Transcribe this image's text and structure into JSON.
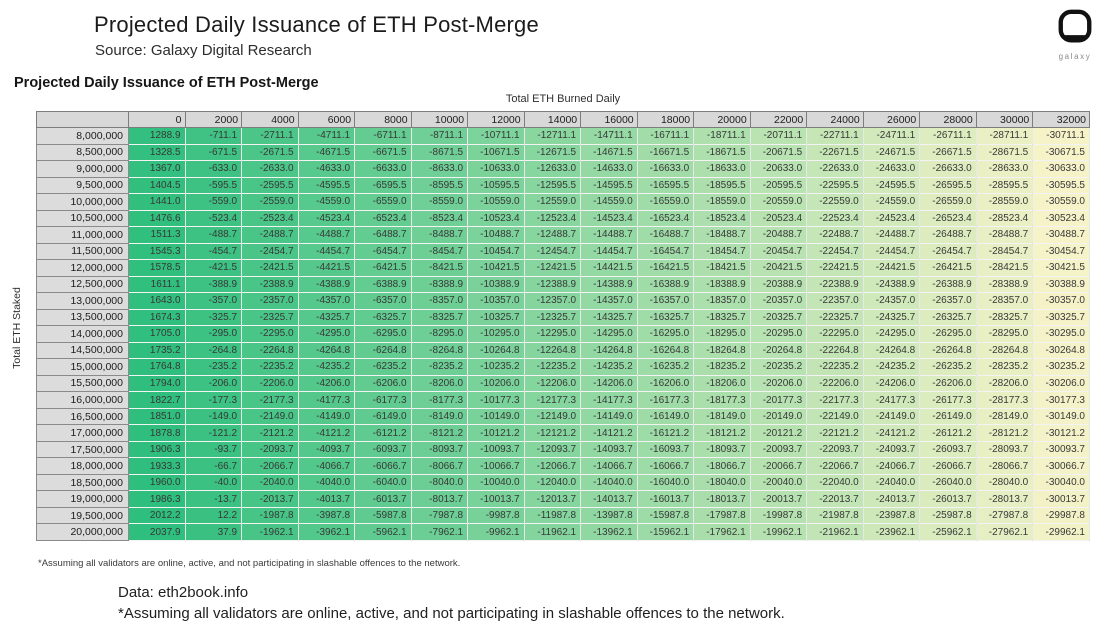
{
  "header": {
    "title": "Projected Daily Issuance of ETH Post-Merge",
    "source": "Source: Galaxy Digital Research",
    "logo_label": "galaxy"
  },
  "table_section": {
    "subtitle": "Projected Daily Issuance of ETH Post-Merge",
    "column_axis_label": "Total ETH Burned Daily",
    "row_axis_label": "Total ETH Staked",
    "footnote": "*Assuming all validators are online, active, and not participating in slashable offences to the network."
  },
  "footer": {
    "data_source": "Data: eth2book.info",
    "footnote": "*Assuming all validators are online, active, and not participating in slashable offences to the network."
  },
  "chart_data": {
    "type": "heatmap",
    "title": "Projected Daily Issuance of ETH Post-Merge",
    "xlabel": "Total ETH Burned Daily",
    "ylabel": "Total ETH Staked",
    "columns": [
      0,
      2000,
      4000,
      6000,
      8000,
      10000,
      12000,
      14000,
      16000,
      18000,
      20000,
      22000,
      24000,
      26000,
      28000,
      30000,
      32000
    ],
    "rows": [
      "8,000,000",
      "8,500,000",
      "9,000,000",
      "9,500,000",
      "10,000,000",
      "10,500,000",
      "11,000,000",
      "11,500,000",
      "12,000,000",
      "12,500,000",
      "13,000,000",
      "13,500,000",
      "14,000,000",
      "14,500,000",
      "15,000,000",
      "15,500,000",
      "16,000,000",
      "16,500,000",
      "17,000,000",
      "17,500,000",
      "18,000,000",
      "18,500,000",
      "19,000,000",
      "19,500,000",
      "20,000,000"
    ],
    "values": [
      [
        1288.9,
        -711.1,
        -2711.1,
        -4711.1,
        -6711.1,
        -8711.1,
        -10711.1,
        -12711.1,
        -14711.1,
        -16711.1,
        -18711.1,
        -20711.1,
        -22711.1,
        -24711.1,
        -26711.1,
        -28711.1,
        -30711.1
      ],
      [
        1328.5,
        -671.5,
        -2671.5,
        -4671.5,
        -6671.5,
        -8671.5,
        -10671.5,
        -12671.5,
        -14671.5,
        -16671.5,
        -18671.5,
        -20671.5,
        -22671.5,
        -24671.5,
        -26671.5,
        -28671.5,
        -30671.5
      ],
      [
        1367.0,
        -633.0,
        -2633.0,
        -4633.0,
        -6633.0,
        -8633.0,
        -10633.0,
        -12633.0,
        -14633.0,
        -16633.0,
        -18633.0,
        -20633.0,
        -22633.0,
        -24633.0,
        -26633.0,
        -28633.0,
        -30633.0
      ],
      [
        1404.5,
        -595.5,
        -2595.5,
        -4595.5,
        -6595.5,
        -8595.5,
        -10595.5,
        -12595.5,
        -14595.5,
        -16595.5,
        -18595.5,
        -20595.5,
        -22595.5,
        -24595.5,
        -26595.5,
        -28595.5,
        -30595.5
      ],
      [
        1441.0,
        -559.0,
        -2559.0,
        -4559.0,
        -6559.0,
        -8559.0,
        -10559.0,
        -12559.0,
        -14559.0,
        -16559.0,
        -18559.0,
        -20559.0,
        -22559.0,
        -24559.0,
        -26559.0,
        -28559.0,
        -30559.0
      ],
      [
        1476.6,
        -523.4,
        -2523.4,
        -4523.4,
        -6523.4,
        -8523.4,
        -10523.4,
        -12523.4,
        -14523.4,
        -16523.4,
        -18523.4,
        -20523.4,
        -22523.4,
        -24523.4,
        -26523.4,
        -28523.4,
        -30523.4
      ],
      [
        1511.3,
        -488.7,
        -2488.7,
        -4488.7,
        -6488.7,
        -8488.7,
        -10488.7,
        -12488.7,
        -14488.7,
        -16488.7,
        -18488.7,
        -20488.7,
        -22488.7,
        -24488.7,
        -26488.7,
        -28488.7,
        -30488.7
      ],
      [
        1545.3,
        -454.7,
        -2454.7,
        -4454.7,
        -6454.7,
        -8454.7,
        -10454.7,
        -12454.7,
        -14454.7,
        -16454.7,
        -18454.7,
        -20454.7,
        -22454.7,
        -24454.7,
        -26454.7,
        -28454.7,
        -30454.7
      ],
      [
        1578.5,
        -421.5,
        -2421.5,
        -4421.5,
        -6421.5,
        -8421.5,
        -10421.5,
        -12421.5,
        -14421.5,
        -16421.5,
        -18421.5,
        -20421.5,
        -22421.5,
        -24421.5,
        -26421.5,
        -28421.5,
        -30421.5
      ],
      [
        1611.1,
        -388.9,
        -2388.9,
        -4388.9,
        -6388.9,
        -8388.9,
        -10388.9,
        -12388.9,
        -14388.9,
        -16388.9,
        -18388.9,
        -20388.9,
        -22388.9,
        -24388.9,
        -26388.9,
        -28388.9,
        -30388.9
      ],
      [
        1643.0,
        -357.0,
        -2357.0,
        -4357.0,
        -6357.0,
        -8357.0,
        -10357.0,
        -12357.0,
        -14357.0,
        -16357.0,
        -18357.0,
        -20357.0,
        -22357.0,
        -24357.0,
        -26357.0,
        -28357.0,
        -30357.0
      ],
      [
        1674.3,
        -325.7,
        -2325.7,
        -4325.7,
        -6325.7,
        -8325.7,
        -10325.7,
        -12325.7,
        -14325.7,
        -16325.7,
        -18325.7,
        -20325.7,
        -22325.7,
        -24325.7,
        -26325.7,
        -28325.7,
        -30325.7
      ],
      [
        1705.0,
        -295.0,
        -2295.0,
        -4295.0,
        -6295.0,
        -8295.0,
        -10295.0,
        -12295.0,
        -14295.0,
        -16295.0,
        -18295.0,
        -20295.0,
        -22295.0,
        -24295.0,
        -26295.0,
        -28295.0,
        -30295.0
      ],
      [
        1735.2,
        -264.8,
        -2264.8,
        -4264.8,
        -6264.8,
        -8264.8,
        -10264.8,
        -12264.8,
        -14264.8,
        -16264.8,
        -18264.8,
        -20264.8,
        -22264.8,
        -24264.8,
        -26264.8,
        -28264.8,
        -30264.8
      ],
      [
        1764.8,
        -235.2,
        -2235.2,
        -4235.2,
        -6235.2,
        -8235.2,
        -10235.2,
        -12235.2,
        -14235.2,
        -16235.2,
        -18235.2,
        -20235.2,
        -22235.2,
        -24235.2,
        -26235.2,
        -28235.2,
        -30235.2
      ],
      [
        1794.0,
        -206.0,
        -2206.0,
        -4206.0,
        -6206.0,
        -8206.0,
        -10206.0,
        -12206.0,
        -14206.0,
        -16206.0,
        -18206.0,
        -20206.0,
        -22206.0,
        -24206.0,
        -26206.0,
        -28206.0,
        -30206.0
      ],
      [
        1822.7,
        -177.3,
        -2177.3,
        -4177.3,
        -6177.3,
        -8177.3,
        -10177.3,
        -12177.3,
        -14177.3,
        -16177.3,
        -18177.3,
        -20177.3,
        -22177.3,
        -24177.3,
        -26177.3,
        -28177.3,
        -30177.3
      ],
      [
        1851.0,
        -149.0,
        -2149.0,
        -4149.0,
        -6149.0,
        -8149.0,
        -10149.0,
        -12149.0,
        -14149.0,
        -16149.0,
        -18149.0,
        -20149.0,
        -22149.0,
        -24149.0,
        -26149.0,
        -28149.0,
        -30149.0
      ],
      [
        1878.8,
        -121.2,
        -2121.2,
        -4121.2,
        -6121.2,
        -8121.2,
        -10121.2,
        -12121.2,
        -14121.2,
        -16121.2,
        -18121.2,
        -20121.2,
        -22121.2,
        -24121.2,
        -26121.2,
        -28121.2,
        -30121.2
      ],
      [
        1906.3,
        -93.7,
        -2093.7,
        -4093.7,
        -6093.7,
        -8093.7,
        -10093.7,
        -12093.7,
        -14093.7,
        -16093.7,
        -18093.7,
        -20093.7,
        -22093.7,
        -24093.7,
        -26093.7,
        -28093.7,
        -30093.7
      ],
      [
        1933.3,
        -66.7,
        -2066.7,
        -4066.7,
        -6066.7,
        -8066.7,
        -10066.7,
        -12066.7,
        -14066.7,
        -16066.7,
        -18066.7,
        -20066.7,
        -22066.7,
        -24066.7,
        -26066.7,
        -28066.7,
        -30066.7
      ],
      [
        1960.0,
        -40.0,
        -2040.0,
        -4040.0,
        -6040.0,
        -8040.0,
        -10040.0,
        -12040.0,
        -14040.0,
        -16040.0,
        -18040.0,
        -20040.0,
        -22040.0,
        -24040.0,
        -26040.0,
        -28040.0,
        -30040.0
      ],
      [
        1986.3,
        -13.7,
        -2013.7,
        -4013.7,
        -6013.7,
        -8013.7,
        -10013.7,
        -12013.7,
        -14013.7,
        -16013.7,
        -18013.7,
        -20013.7,
        -22013.7,
        -24013.7,
        -26013.7,
        -28013.7,
        -30013.7
      ],
      [
        2012.2,
        12.2,
        -1987.8,
        -3987.8,
        -5987.8,
        -7987.8,
        -9987.8,
        -11987.8,
        -13987.8,
        -15987.8,
        -17987.8,
        -19987.8,
        -21987.8,
        -23987.8,
        -25987.8,
        -27987.8,
        -29987.8
      ],
      [
        2037.9,
        37.9,
        -1962.1,
        -3962.1,
        -5962.1,
        -7962.1,
        -9962.1,
        -11962.1,
        -13962.1,
        -15962.1,
        -17962.1,
        -19962.1,
        -21962.1,
        -23962.1,
        -25962.1,
        -27962.1,
        -29962.1
      ]
    ],
    "color_scale": {
      "max_color": "#2EBE7D",
      "min_color": "#F7F3C9",
      "max_value": 2037.9,
      "min_value": -30711.1
    },
    "legend_position": "none",
    "grid": false,
    "value_format": "one_decimal"
  }
}
